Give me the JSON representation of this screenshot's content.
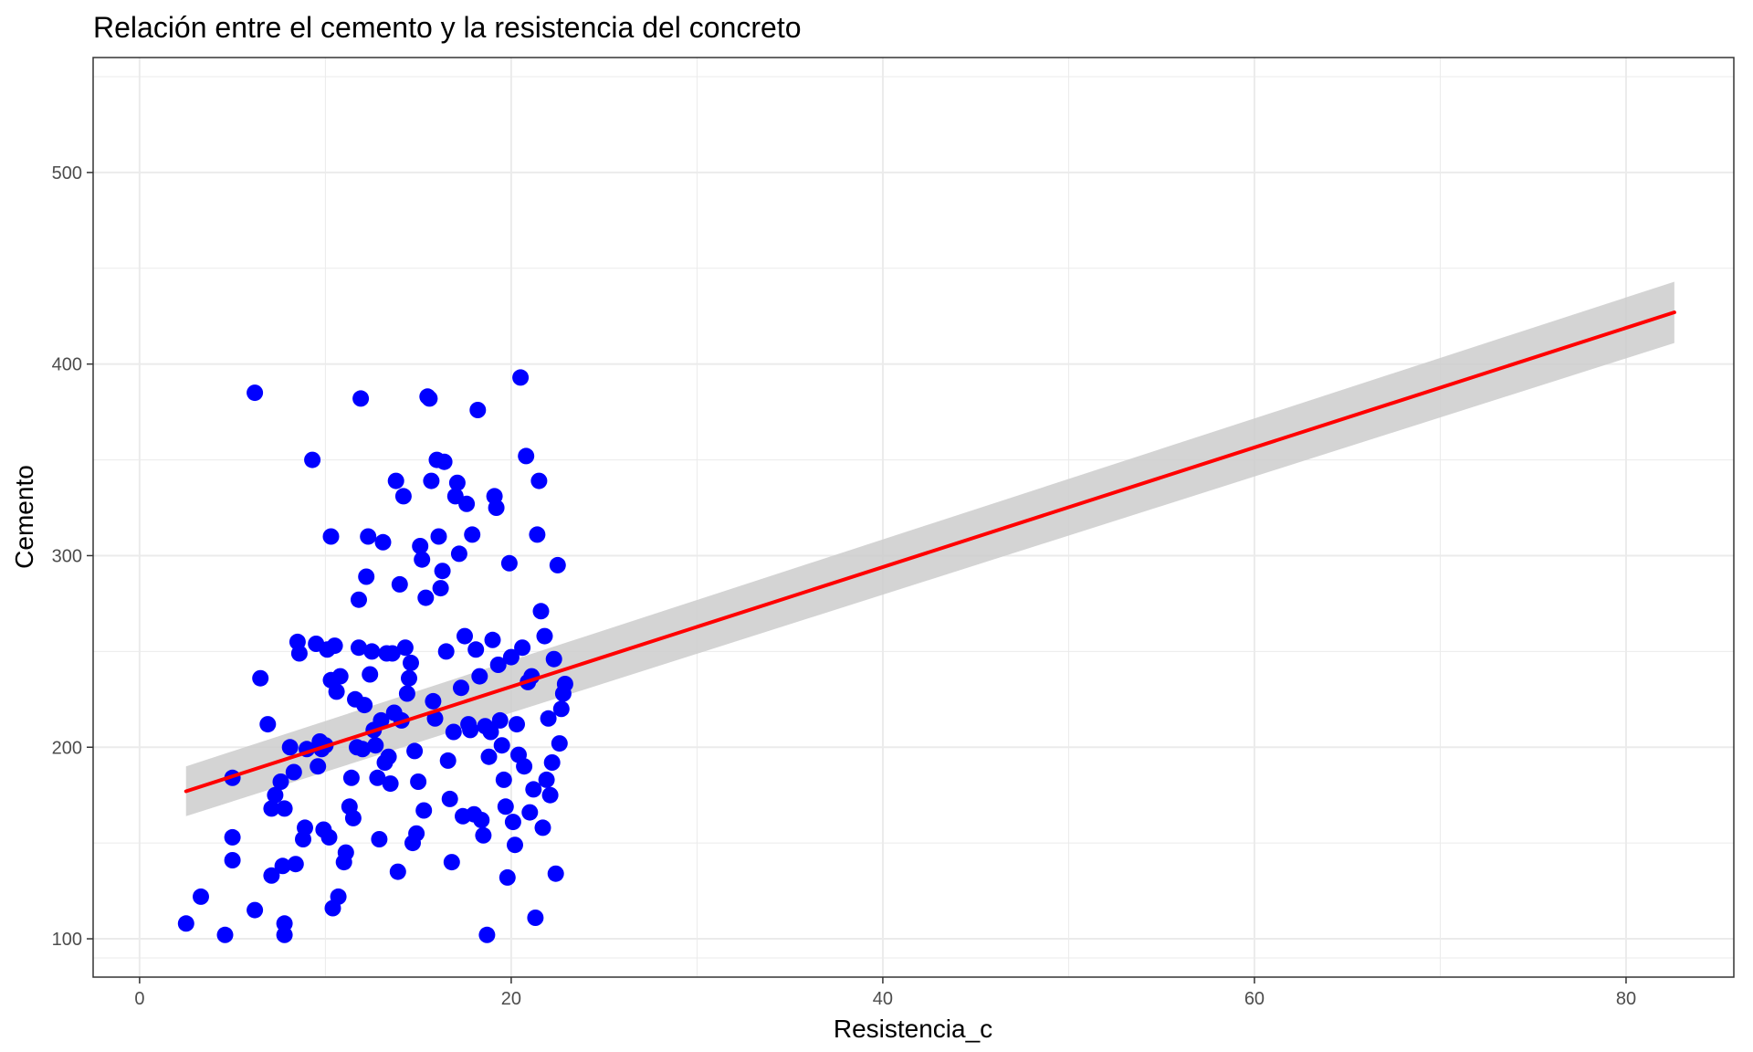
{
  "chart_data": {
    "type": "scatter",
    "title": "Relación entre el cemento y la resistencia del concreto",
    "xlabel": "Resistencia_c",
    "ylabel": "Cemento",
    "xlim": [
      -2.5,
      85.8
    ],
    "ylim": [
      80,
      560
    ],
    "x_ticks": [
      0,
      20,
      40,
      60,
      80
    ],
    "y_ticks": [
      100,
      200,
      300,
      400,
      500
    ],
    "grid": true,
    "point_color": "#0000FF",
    "fit_color": "#FF0000",
    "band_color": "#CCCCCC",
    "panel_border_color": "#333333",
    "grid_color": "#EBEBEB",
    "regression": {
      "x": [
        2.5,
        82.6
      ],
      "y": [
        177,
        427
      ],
      "ci_low": [
        164,
        411
      ],
      "ci_high": [
        190,
        443
      ]
    },
    "series": [
      {
        "values": [
          [
            2.5,
            108
          ],
          [
            3.3,
            122
          ],
          [
            4.6,
            102
          ],
          [
            5.0,
            153
          ],
          [
            5.0,
            141
          ],
          [
            5.0,
            184
          ],
          [
            6.2,
            115
          ],
          [
            6.2,
            385
          ],
          [
            6.5,
            236
          ],
          [
            6.9,
            212
          ],
          [
            7.1,
            168
          ],
          [
            7.1,
            133
          ],
          [
            7.3,
            175
          ],
          [
            7.6,
            182
          ],
          [
            7.7,
            138
          ],
          [
            7.8,
            168
          ],
          [
            7.8,
            102
          ],
          [
            7.8,
            108
          ],
          [
            8.1,
            200
          ],
          [
            8.3,
            187
          ],
          [
            8.4,
            139
          ],
          [
            8.5,
            255
          ],
          [
            8.6,
            249
          ],
          [
            8.8,
            152
          ],
          [
            8.9,
            158
          ],
          [
            9.0,
            199
          ],
          [
            9.3,
            350
          ],
          [
            9.5,
            254
          ],
          [
            9.6,
            190
          ],
          [
            9.7,
            203
          ],
          [
            9.8,
            199
          ],
          [
            9.9,
            157
          ],
          [
            10.0,
            201
          ],
          [
            10.1,
            251
          ],
          [
            10.2,
            153
          ],
          [
            10.3,
            310
          ],
          [
            10.3,
            235
          ],
          [
            10.4,
            116
          ],
          [
            10.5,
            253
          ],
          [
            10.6,
            229
          ],
          [
            10.7,
            122
          ],
          [
            10.8,
            237
          ],
          [
            11.0,
            140
          ],
          [
            11.1,
            145
          ],
          [
            11.3,
            169
          ],
          [
            11.4,
            184
          ],
          [
            11.5,
            163
          ],
          [
            11.6,
            225
          ],
          [
            11.7,
            200
          ],
          [
            11.8,
            252
          ],
          [
            11.8,
            277
          ],
          [
            11.9,
            382
          ],
          [
            12.0,
            199
          ],
          [
            12.1,
            222
          ],
          [
            12.2,
            289
          ],
          [
            12.3,
            310
          ],
          [
            12.4,
            238
          ],
          [
            12.5,
            250
          ],
          [
            12.6,
            209
          ],
          [
            12.7,
            201
          ],
          [
            12.8,
            184
          ],
          [
            12.9,
            152
          ],
          [
            13.0,
            214
          ],
          [
            13.1,
            307
          ],
          [
            13.2,
            192
          ],
          [
            13.3,
            249
          ],
          [
            13.4,
            195
          ],
          [
            13.5,
            181
          ],
          [
            13.6,
            249
          ],
          [
            13.7,
            218
          ],
          [
            13.8,
            339
          ],
          [
            13.9,
            135
          ],
          [
            14.0,
            285
          ],
          [
            14.1,
            214
          ],
          [
            14.2,
            331
          ],
          [
            14.3,
            252
          ],
          [
            14.4,
            228
          ],
          [
            14.5,
            236
          ],
          [
            14.6,
            244
          ],
          [
            14.7,
            150
          ],
          [
            14.8,
            198
          ],
          [
            14.9,
            155
          ],
          [
            15.0,
            182
          ],
          [
            15.1,
            305
          ],
          [
            15.2,
            298
          ],
          [
            15.3,
            167
          ],
          [
            15.4,
            278
          ],
          [
            15.5,
            383
          ],
          [
            15.6,
            382
          ],
          [
            15.7,
            339
          ],
          [
            15.8,
            224
          ],
          [
            15.9,
            215
          ],
          [
            16.0,
            350
          ],
          [
            16.1,
            310
          ],
          [
            16.2,
            283
          ],
          [
            16.3,
            292
          ],
          [
            16.4,
            349
          ],
          [
            16.5,
            250
          ],
          [
            16.6,
            193
          ],
          [
            16.7,
            173
          ],
          [
            16.8,
            140
          ],
          [
            16.9,
            208
          ],
          [
            17.0,
            331
          ],
          [
            17.1,
            338
          ],
          [
            17.2,
            301
          ],
          [
            17.3,
            231
          ],
          [
            17.4,
            164
          ],
          [
            17.5,
            258
          ],
          [
            17.6,
            327
          ],
          [
            17.7,
            212
          ],
          [
            17.8,
            209
          ],
          [
            17.9,
            311
          ],
          [
            18.0,
            165
          ],
          [
            18.1,
            251
          ],
          [
            18.2,
            376
          ],
          [
            18.3,
            237
          ],
          [
            18.4,
            162
          ],
          [
            18.5,
            154
          ],
          [
            18.6,
            211
          ],
          [
            18.7,
            102
          ],
          [
            18.8,
            195
          ],
          [
            18.9,
            208
          ],
          [
            19.0,
            256
          ],
          [
            19.1,
            331
          ],
          [
            19.2,
            325
          ],
          [
            19.3,
            243
          ],
          [
            19.4,
            214
          ],
          [
            19.5,
            201
          ],
          [
            19.6,
            183
          ],
          [
            19.7,
            169
          ],
          [
            19.8,
            132
          ],
          [
            19.9,
            296
          ],
          [
            20.0,
            247
          ],
          [
            20.1,
            161
          ],
          [
            20.2,
            149
          ],
          [
            20.3,
            212
          ],
          [
            20.4,
            196
          ],
          [
            20.5,
            393
          ],
          [
            20.6,
            252
          ],
          [
            20.7,
            190
          ],
          [
            20.8,
            352
          ],
          [
            20.9,
            234
          ],
          [
            21.0,
            166
          ],
          [
            21.1,
            237
          ],
          [
            21.2,
            178
          ],
          [
            21.3,
            111
          ],
          [
            21.4,
            311
          ],
          [
            21.5,
            339
          ],
          [
            21.6,
            271
          ],
          [
            21.7,
            158
          ],
          [
            21.8,
            258
          ],
          [
            21.9,
            183
          ],
          [
            22.0,
            215
          ],
          [
            22.1,
            175
          ],
          [
            22.2,
            192
          ],
          [
            22.3,
            246
          ],
          [
            22.4,
            134
          ],
          [
            22.5,
            295
          ],
          [
            22.6,
            202
          ],
          [
            22.7,
            220
          ],
          [
            22.8,
            228
          ],
          [
            22.9,
            233
          ]
        ]
      }
    ]
  }
}
